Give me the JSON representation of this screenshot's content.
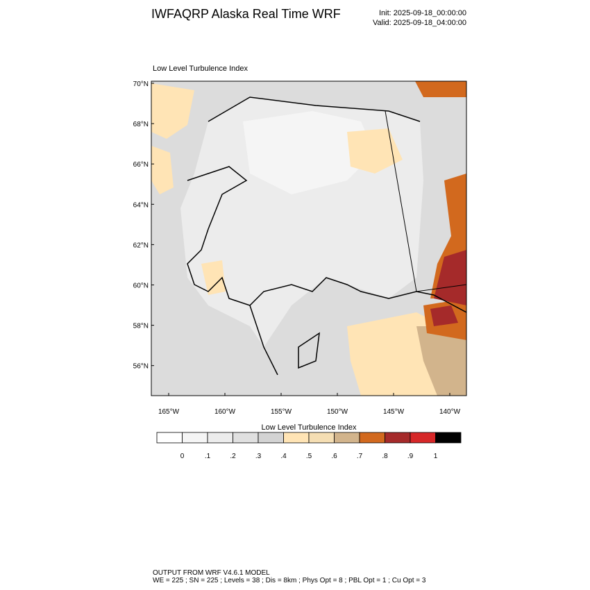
{
  "header": {
    "title": "IWFAQRP Alaska Real Time WRF",
    "init": "Init: 2025-09-18_00:00:00",
    "valid": "Valid: 2025-09-18_04:00:00"
  },
  "map": {
    "title": "Low Level Turbulence Index",
    "lat_labels": [
      "70°N",
      "68°N",
      "66°N",
      "64°N",
      "62°N",
      "60°N",
      "58°N",
      "56°N"
    ],
    "lon_labels": [
      "165°W",
      "160°W",
      "155°W",
      "150°W",
      "145°W",
      "140°W"
    ]
  },
  "colorbar": {
    "title": "Low Level Turbulence Index",
    "colors": [
      "#ffffff",
      "#f5f5f5",
      "#ececec",
      "#e0e0e0",
      "#d3d3d3",
      "#ffe4b5",
      "#f5deb3",
      "#d2b48c",
      "#d2691e",
      "#a52a2a",
      "#d62728",
      "#000000"
    ],
    "labels": [
      "0",
      ".1",
      ".2",
      ".3",
      ".4",
      ".5",
      ".6",
      ".7",
      ".8",
      ".9",
      "1"
    ]
  },
  "footer": {
    "line1": "OUTPUT FROM WRF V4.6.1 MODEL",
    "line2": "WE = 225 ; SN = 225 ; Levels = 38 ; Dis = 8km ; Phys Opt = 8 ; PBL Opt = 1 ; Cu Opt = 3"
  }
}
